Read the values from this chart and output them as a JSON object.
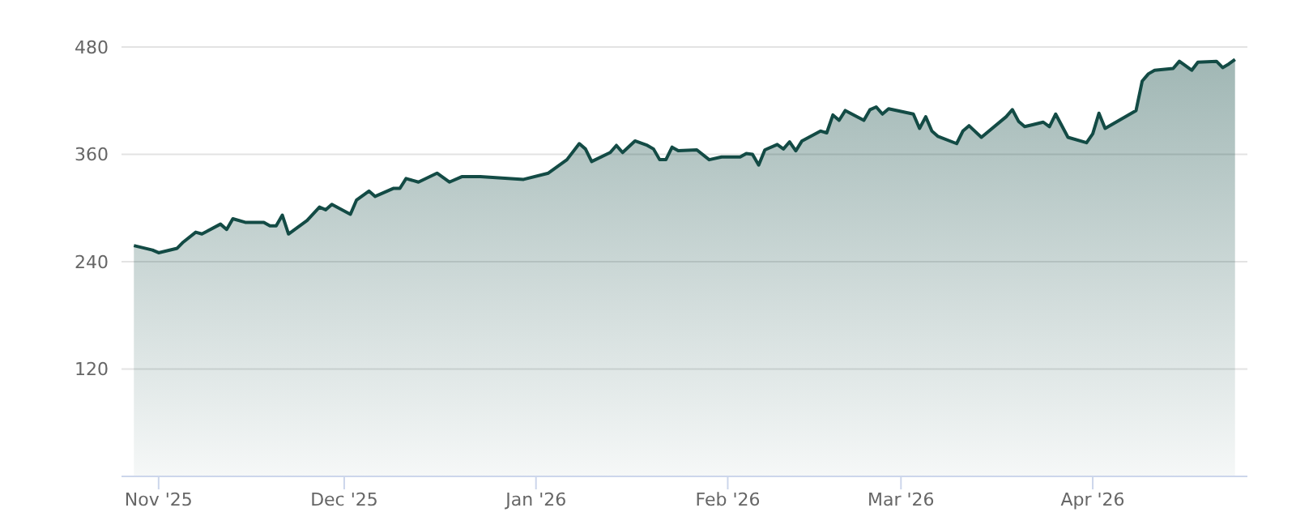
{
  "chart_data": {
    "type": "area",
    "xlim": [
      "2025-10-26",
      "2026-04-26"
    ],
    "xticks": [
      {
        "value": "2025-11-01",
        "label": "Nov '25"
      },
      {
        "value": "2025-12-01",
        "label": "Dec '25"
      },
      {
        "value": "2026-01-01",
        "label": "Jan '26"
      },
      {
        "value": "2026-02-01",
        "label": "Feb '26"
      },
      {
        "value": "2026-03-01",
        "label": "Mar '26"
      },
      {
        "value": "2026-04-01",
        "label": "Apr '26"
      }
    ],
    "ylim": [
      0,
      480
    ],
    "yticks": [
      120,
      240,
      360,
      480
    ],
    "grid": "y",
    "legend": false,
    "marker": "none",
    "x": [
      "2025-10-28",
      "2025-10-31",
      "2025-11-01",
      "2025-11-04",
      "2025-11-05",
      "2025-11-07",
      "2025-11-08",
      "2025-11-11",
      "2025-11-12",
      "2025-11-13",
      "2025-11-15",
      "2025-11-18",
      "2025-11-19",
      "2025-11-20",
      "2025-11-21",
      "2025-11-22",
      "2025-11-25",
      "2025-11-27",
      "2025-11-28",
      "2025-11-29",
      "2025-12-02",
      "2025-12-03",
      "2025-12-05",
      "2025-12-06",
      "2025-12-09",
      "2025-12-10",
      "2025-12-11",
      "2025-12-13",
      "2025-12-16",
      "2025-12-18",
      "2025-12-20",
      "2025-12-23",
      "2025-12-30",
      "2026-01-03",
      "2026-01-06",
      "2026-01-08",
      "2026-01-09",
      "2026-01-10",
      "2026-01-13",
      "2026-01-14",
      "2026-01-15",
      "2026-01-17",
      "2026-01-19",
      "2026-01-20",
      "2026-01-21",
      "2026-01-22",
      "2026-01-23",
      "2026-01-24",
      "2026-01-27",
      "2026-01-29",
      "2026-01-31",
      "2026-02-03",
      "2026-02-04",
      "2026-02-05",
      "2026-02-06",
      "2026-02-07",
      "2026-02-09",
      "2026-02-10",
      "2026-02-11",
      "2026-02-12",
      "2026-02-13",
      "2026-02-16",
      "2026-02-17",
      "2026-02-18",
      "2026-02-19",
      "2026-02-20",
      "2026-02-23",
      "2026-02-24",
      "2026-02-25",
      "2026-02-26",
      "2026-02-27",
      "2026-03-03",
      "2026-03-04",
      "2026-03-05",
      "2026-03-06",
      "2026-03-07",
      "2026-03-10",
      "2026-03-11",
      "2026-03-12",
      "2026-03-14",
      "2026-03-18",
      "2026-03-19",
      "2026-03-20",
      "2026-03-21",
      "2026-03-24",
      "2026-03-25",
      "2026-03-26",
      "2026-03-28",
      "2026-03-31",
      "2026-04-01",
      "2026-04-02",
      "2026-04-03",
      "2026-04-08",
      "2026-04-09",
      "2026-04-10",
      "2026-04-11",
      "2026-04-14",
      "2026-04-15",
      "2026-04-17",
      "2026-04-18",
      "2026-04-21",
      "2026-04-22",
      "2026-04-23",
      "2026-04-24"
    ],
    "series": [
      {
        "color": "#134b45",
        "values": [
          258,
          253,
          250,
          255,
          262,
          273,
          271,
          282,
          276,
          288,
          284,
          284,
          280,
          280,
          292,
          271,
          286,
          301,
          298,
          304,
          293,
          309,
          319,
          313,
          322,
          322,
          333,
          329,
          339,
          329,
          335,
          335,
          332,
          339,
          354,
          372,
          366,
          352,
          362,
          370,
          362,
          375,
          370,
          366,
          354,
          354,
          368,
          364,
          365,
          354,
          357,
          357,
          361,
          360,
          348,
          365,
          371,
          366,
          374,
          364,
          375,
          386,
          384,
          404,
          398,
          409,
          398,
          410,
          413,
          405,
          411,
          405,
          389,
          402,
          386,
          380,
          372,
          386,
          392,
          379,
          402,
          410,
          397,
          391,
          396,
          391,
          405,
          379,
          373,
          383,
          406,
          389,
          409,
          442,
          450,
          454,
          456,
          464,
          454,
          463,
          464,
          457,
          461,
          466
        ]
      }
    ]
  }
}
